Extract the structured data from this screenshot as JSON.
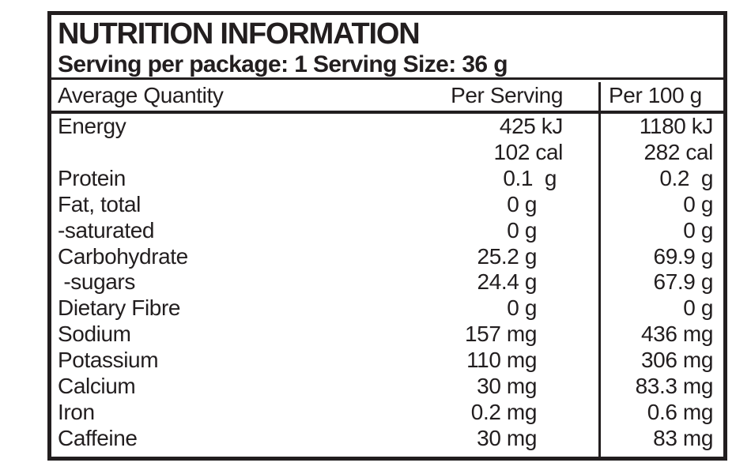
{
  "label": {
    "title": "NUTRITION INFORMATION",
    "subtitle": "Serving per package: 1 Serving Size: 36 g",
    "columns": [
      "Average Quantity",
      "Per Serving",
      "Per 100 g"
    ],
    "rows": [
      {
        "name": "Energy",
        "per_serving": "425 kJ",
        "per_100g": "1180 kJ"
      },
      {
        "name": "",
        "per_serving": "102 cal",
        "per_100g": "282 cal"
      },
      {
        "name": "Protein",
        "per_serving": "0.1  g",
        "per_100g": "0.2  g"
      },
      {
        "name": "Fat, total",
        "per_serving": "0 g",
        "per_100g": "0 g"
      },
      {
        "name": "-saturated",
        "per_serving": "0 g",
        "per_100g": "0 g"
      },
      {
        "name": "Carbohydrate",
        "per_serving": "25.2 g",
        "per_100g": "69.9 g"
      },
      {
        "name": " -sugars",
        "per_serving": "24.4 g",
        "per_100g": "67.9 g"
      },
      {
        "name": "Dietary Fibre",
        "per_serving": "0 g",
        "per_100g": "0 g"
      },
      {
        "name": "Sodium",
        "per_serving": "157 mg",
        "per_100g": "436 mg"
      },
      {
        "name": "Potassium",
        "per_serving": "110 mg",
        "per_100g": "306 mg"
      },
      {
        "name": "Calcium",
        "per_serving": "30 mg",
        "per_100g": "83.3 mg"
      },
      {
        "name": "Iron",
        "per_serving": "0.2 mg",
        "per_100g": "0.6 mg"
      },
      {
        "name": "Caffeine",
        "per_serving": "30 mg",
        "per_100g": "83 mg"
      }
    ],
    "colors": {
      "ink": "#221e1f",
      "background": "#ffffff"
    }
  }
}
